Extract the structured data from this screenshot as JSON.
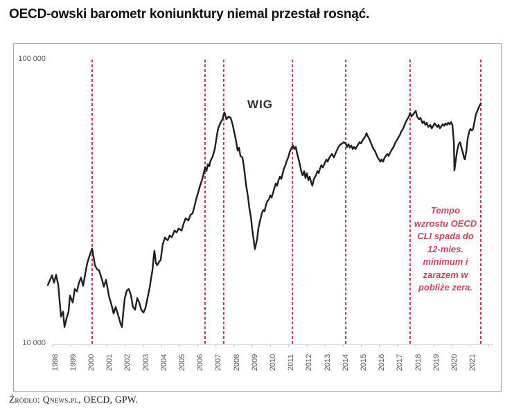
{
  "page": {
    "title": "OECD-owski barometr koniunktury niemal przestał rosnąć.",
    "source": "Źródło: Qnews.pl, OECD, GPW."
  },
  "chart_data": {
    "type": "line",
    "series_label": "WIG",
    "y_axis": {
      "scale": "log",
      "min": 10000,
      "max": 100000,
      "ticks": [
        "100 000",
        "10 000"
      ]
    },
    "x_axis": {
      "years": [
        "1998",
        "1999",
        "2000",
        "2001",
        "2002",
        "2003",
        "2004",
        "2005",
        "2006",
        "2007",
        "2008",
        "2009",
        "2010",
        "2011",
        "2012",
        "2013",
        "2014",
        "2015",
        "2016",
        "2017",
        "2018",
        "2019",
        "2020",
        "2021"
      ]
    },
    "event_lines": {
      "meaning": "OECD CLI annual-growth hits 12-month minimum near zero",
      "style": "dashed",
      "color": "#c13b4f",
      "years": [
        2000.42,
        2006.58,
        2007.6,
        2011.35,
        2014.26,
        2017.77,
        2021.63
      ]
    },
    "annotation": {
      "color": "#c4465a",
      "lines": [
        "Tempo",
        "wzrostu OECD",
        "CLI spada do",
        "12-mies.",
        "minimum i",
        "zarazem w",
        "pobliże zera."
      ]
    },
    "series": [
      {
        "name": "WIG",
        "color": "#1e1e1e",
        "points": [
          [
            1998.0,
            16000
          ],
          [
            1998.23,
            17300
          ],
          [
            1998.34,
            16300
          ],
          [
            1998.45,
            17400
          ],
          [
            1998.57,
            16000
          ],
          [
            1998.72,
            12400
          ],
          [
            1998.83,
            12900
          ],
          [
            1998.91,
            11400
          ],
          [
            1999.02,
            12200
          ],
          [
            1999.13,
            12900
          ],
          [
            1999.21,
            14700
          ],
          [
            1999.36,
            13900
          ],
          [
            1999.47,
            15500
          ],
          [
            1999.59,
            15200
          ],
          [
            1999.7,
            16300
          ],
          [
            1999.81,
            17000
          ],
          [
            1999.93,
            15900
          ],
          [
            2000.04,
            17500
          ],
          [
            2000.15,
            19100
          ],
          [
            2000.27,
            20200
          ],
          [
            2000.42,
            21500
          ],
          [
            2000.57,
            18800
          ],
          [
            2000.68,
            18200
          ],
          [
            2000.8,
            18000
          ],
          [
            2000.95,
            16800
          ],
          [
            2001.06,
            15800
          ],
          [
            2001.18,
            16700
          ],
          [
            2001.33,
            14700
          ],
          [
            2001.48,
            13600
          ],
          [
            2001.59,
            12700
          ],
          [
            2001.7,
            13400
          ],
          [
            2001.86,
            12400
          ],
          [
            2001.97,
            11700
          ],
          [
            2002.05,
            11400
          ],
          [
            2002.12,
            12900
          ],
          [
            2002.2,
            14400
          ],
          [
            2002.31,
            15300
          ],
          [
            2002.42,
            15500
          ],
          [
            2002.53,
            14800
          ],
          [
            2002.65,
            13400
          ],
          [
            2002.76,
            13100
          ],
          [
            2002.88,
            14400
          ],
          [
            2002.99,
            13900
          ],
          [
            2003.1,
            13100
          ],
          [
            2003.22,
            12800
          ],
          [
            2003.33,
            13300
          ],
          [
            2003.44,
            14400
          ],
          [
            2003.56,
            15700
          ],
          [
            2003.63,
            16800
          ],
          [
            2003.71,
            18000
          ],
          [
            2003.78,
            20200
          ],
          [
            2003.82,
            21100
          ],
          [
            2003.9,
            19100
          ],
          [
            2003.97,
            18800
          ],
          [
            2004.09,
            19400
          ],
          [
            2004.16,
            19600
          ],
          [
            2004.27,
            22200
          ],
          [
            2004.39,
            23500
          ],
          [
            2004.54,
            23000
          ],
          [
            2004.65,
            23900
          ],
          [
            2004.77,
            23600
          ],
          [
            2004.92,
            24900
          ],
          [
            2005.03,
            24500
          ],
          [
            2005.14,
            25300
          ],
          [
            2005.3,
            24900
          ],
          [
            2005.41,
            26300
          ],
          [
            2005.52,
            27500
          ],
          [
            2005.67,
            27000
          ],
          [
            2005.79,
            28300
          ],
          [
            2005.9,
            28600
          ],
          [
            2005.98,
            29900
          ],
          [
            2006.09,
            32000
          ],
          [
            2006.2,
            33800
          ],
          [
            2006.31,
            35800
          ],
          [
            2006.43,
            37800
          ],
          [
            2006.51,
            39600
          ],
          [
            2006.58,
            41500
          ],
          [
            2006.66,
            40300
          ],
          [
            2006.73,
            42600
          ],
          [
            2006.81,
            41900
          ],
          [
            2006.88,
            43800
          ],
          [
            2007.0,
            45400
          ],
          [
            2007.11,
            48200
          ],
          [
            2007.23,
            53900
          ],
          [
            2007.3,
            57000
          ],
          [
            2007.41,
            59300
          ],
          [
            2007.53,
            61300
          ],
          [
            2007.6,
            63800
          ],
          [
            2007.64,
            64900
          ],
          [
            2007.75,
            61300
          ],
          [
            2007.87,
            62700
          ],
          [
            2007.98,
            62000
          ],
          [
            2008.09,
            58600
          ],
          [
            2008.17,
            55400
          ],
          [
            2008.25,
            52400
          ],
          [
            2008.36,
            47600
          ],
          [
            2008.43,
            48700
          ],
          [
            2008.51,
            45600
          ],
          [
            2008.62,
            45000
          ],
          [
            2008.7,
            41900
          ],
          [
            2008.81,
            36400
          ],
          [
            2008.93,
            32500
          ],
          [
            2009.0,
            29900
          ],
          [
            2009.08,
            27800
          ],
          [
            2009.15,
            25300
          ],
          [
            2009.23,
            23200
          ],
          [
            2009.3,
            21400
          ],
          [
            2009.42,
            23200
          ],
          [
            2009.49,
            25300
          ],
          [
            2009.57,
            26700
          ],
          [
            2009.68,
            28600
          ],
          [
            2009.76,
            29400
          ],
          [
            2009.83,
            29100
          ],
          [
            2009.91,
            30700
          ],
          [
            2009.98,
            31600
          ],
          [
            2010.06,
            32000
          ],
          [
            2010.14,
            33100
          ],
          [
            2010.21,
            32500
          ],
          [
            2010.29,
            33800
          ],
          [
            2010.36,
            35000
          ],
          [
            2010.44,
            36400
          ],
          [
            2010.51,
            35800
          ],
          [
            2010.59,
            37400
          ],
          [
            2010.67,
            38500
          ],
          [
            2010.74,
            37800
          ],
          [
            2010.82,
            39600
          ],
          [
            2010.89,
            41200
          ],
          [
            2010.97,
            42300
          ],
          [
            2011.04,
            43800
          ],
          [
            2011.12,
            45000
          ],
          [
            2011.19,
            46800
          ],
          [
            2011.27,
            48200
          ],
          [
            2011.38,
            49600
          ],
          [
            2011.46,
            48200
          ],
          [
            2011.53,
            49000
          ],
          [
            2011.61,
            46300
          ],
          [
            2011.72,
            43500
          ],
          [
            2011.84,
            40000
          ],
          [
            2011.91,
            38900
          ],
          [
            2011.99,
            40300
          ],
          [
            2012.06,
            38100
          ],
          [
            2012.14,
            39600
          ],
          [
            2012.22,
            37400
          ],
          [
            2012.29,
            38500
          ],
          [
            2012.37,
            36800
          ],
          [
            2012.44,
            35800
          ],
          [
            2012.52,
            37800
          ],
          [
            2012.63,
            38900
          ],
          [
            2012.71,
            40300
          ],
          [
            2012.78,
            39600
          ],
          [
            2012.86,
            41200
          ],
          [
            2012.93,
            42300
          ],
          [
            2013.01,
            41500
          ],
          [
            2013.12,
            43100
          ],
          [
            2013.2,
            44300
          ],
          [
            2013.27,
            43500
          ],
          [
            2013.35,
            44800
          ],
          [
            2013.43,
            45600
          ],
          [
            2013.5,
            46300
          ],
          [
            2013.61,
            45000
          ],
          [
            2013.69,
            46300
          ],
          [
            2013.77,
            47600
          ],
          [
            2013.84,
            48700
          ],
          [
            2013.92,
            49600
          ],
          [
            2013.99,
            50100
          ],
          [
            2014.07,
            50400
          ],
          [
            2014.14,
            50900
          ],
          [
            2014.26,
            50400
          ],
          [
            2014.33,
            49000
          ],
          [
            2014.41,
            50100
          ],
          [
            2014.48,
            48700
          ],
          [
            2014.56,
            49600
          ],
          [
            2014.64,
            48200
          ],
          [
            2014.71,
            49000
          ],
          [
            2014.79,
            48200
          ],
          [
            2014.9,
            49600
          ],
          [
            2015.01,
            50900
          ],
          [
            2015.09,
            50400
          ],
          [
            2015.16,
            51500
          ],
          [
            2015.24,
            52400
          ],
          [
            2015.32,
            53300
          ],
          [
            2015.39,
            54800
          ],
          [
            2015.47,
            53300
          ],
          [
            2015.54,
            52400
          ],
          [
            2015.62,
            50900
          ],
          [
            2015.69,
            49600
          ],
          [
            2015.77,
            48200
          ],
          [
            2015.84,
            47600
          ],
          [
            2015.92,
            46300
          ],
          [
            2016.0,
            45000
          ],
          [
            2016.07,
            44300
          ],
          [
            2016.15,
            43500
          ],
          [
            2016.22,
            44300
          ],
          [
            2016.3,
            43500
          ],
          [
            2016.37,
            44800
          ],
          [
            2016.45,
            45600
          ],
          [
            2016.53,
            46300
          ],
          [
            2016.6,
            45600
          ],
          [
            2016.68,
            46800
          ],
          [
            2016.79,
            48200
          ],
          [
            2016.87,
            49000
          ],
          [
            2016.94,
            50400
          ],
          [
            2017.02,
            51500
          ],
          [
            2017.09,
            52400
          ],
          [
            2017.21,
            53900
          ],
          [
            2017.28,
            55400
          ],
          [
            2017.4,
            57000
          ],
          [
            2017.47,
            58600
          ],
          [
            2017.55,
            60300
          ],
          [
            2017.62,
            61300
          ],
          [
            2017.7,
            62700
          ],
          [
            2017.77,
            64500
          ],
          [
            2017.85,
            62700
          ],
          [
            2017.96,
            64100
          ],
          [
            2018.08,
            65600
          ],
          [
            2018.15,
            62700
          ],
          [
            2018.26,
            61300
          ],
          [
            2018.34,
            62000
          ],
          [
            2018.45,
            59300
          ],
          [
            2018.53,
            60300
          ],
          [
            2018.6,
            58600
          ],
          [
            2018.68,
            59600
          ],
          [
            2018.76,
            57600
          ],
          [
            2018.87,
            58600
          ],
          [
            2018.95,
            57000
          ],
          [
            2019.02,
            57900
          ],
          [
            2019.1,
            59300
          ],
          [
            2019.17,
            58600
          ],
          [
            2019.25,
            57600
          ],
          [
            2019.32,
            58600
          ],
          [
            2019.4,
            57000
          ],
          [
            2019.47,
            57900
          ],
          [
            2019.55,
            58900
          ],
          [
            2019.63,
            58200
          ],
          [
            2019.7,
            59300
          ],
          [
            2019.78,
            58600
          ],
          [
            2019.85,
            59600
          ],
          [
            2019.93,
            58900
          ],
          [
            2020.0,
            59900
          ],
          [
            2020.08,
            58600
          ],
          [
            2020.16,
            50900
          ],
          [
            2020.19,
            40500
          ],
          [
            2020.27,
            44300
          ],
          [
            2020.34,
            47600
          ],
          [
            2020.42,
            50100
          ],
          [
            2020.5,
            50900
          ],
          [
            2020.57,
            48700
          ],
          [
            2020.65,
            46800
          ],
          [
            2020.72,
            44800
          ],
          [
            2020.76,
            44300
          ],
          [
            2020.84,
            47400
          ],
          [
            2020.91,
            52400
          ],
          [
            2020.99,
            55400
          ],
          [
            2021.06,
            56700
          ],
          [
            2021.14,
            56000
          ],
          [
            2021.21,
            56700
          ],
          [
            2021.29,
            60300
          ],
          [
            2021.36,
            63800
          ],
          [
            2021.44,
            65600
          ],
          [
            2021.52,
            67500
          ],
          [
            2021.63,
            69800
          ]
        ]
      }
    ]
  }
}
